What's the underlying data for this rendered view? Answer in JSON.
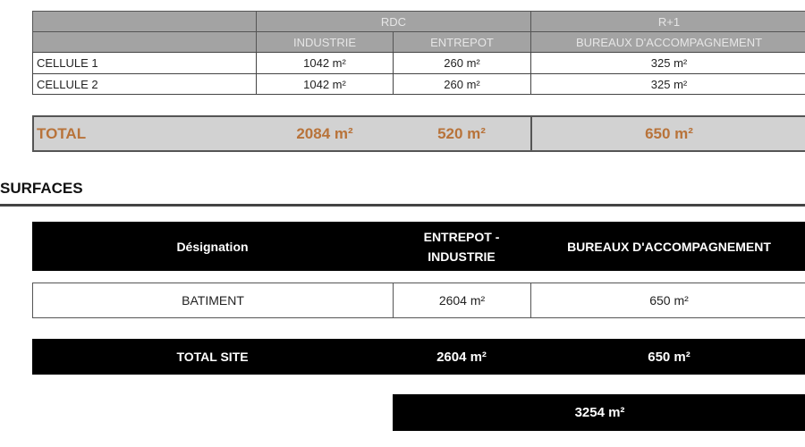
{
  "floors_table": {
    "levels": [
      "RDC",
      "R+1"
    ],
    "columns": [
      "INDUSTRIE",
      "ENTREPOT",
      "BUREAUX D'ACCOMPAGNEMENT"
    ],
    "rows": [
      {
        "label": "CELLULE 1",
        "values": [
          "1042 m²",
          "260 m²",
          "325 m²"
        ]
      },
      {
        "label": "CELLULE 2",
        "values": [
          "1042 m²",
          "260 m²",
          "325 m²"
        ]
      }
    ],
    "total": {
      "label": "TOTAL",
      "values": [
        "2084 m²",
        "520 m²",
        "650 m²"
      ]
    },
    "total_color": "#b8733a"
  },
  "section_title": "SURFACES",
  "surfaces_table": {
    "headers": [
      "Désignation",
      "ENTREPOT - INDUSTRIE",
      "BUREAUX D'ACCOMPAGNEMENT"
    ],
    "rows": [
      {
        "label": "BATIMENT",
        "values": [
          "2604 m²",
          "650 m²"
        ]
      }
    ],
    "total": {
      "label": "TOTAL SITE",
      "values": [
        "2604 m²",
        "650 m²"
      ]
    },
    "grand_total": "3254 m²"
  }
}
